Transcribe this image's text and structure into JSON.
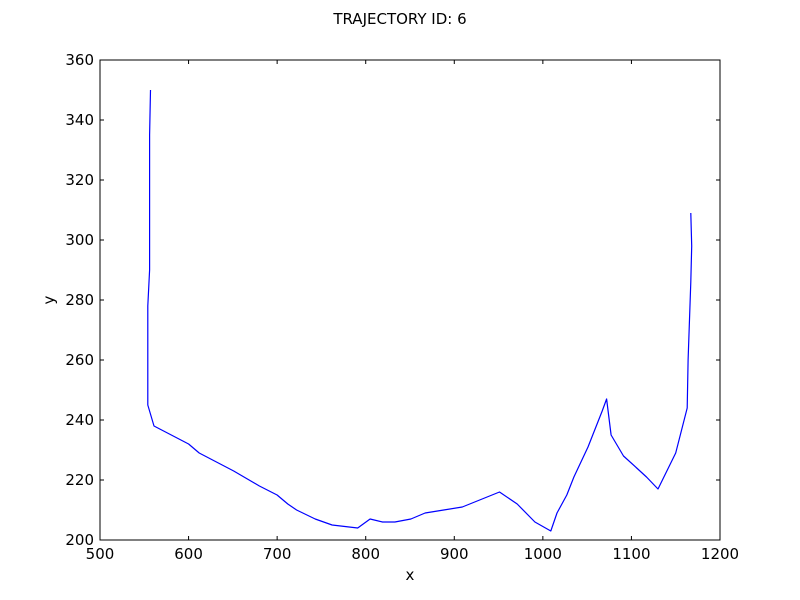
{
  "chart_data": {
    "type": "line",
    "title": "TRAJECTORY ID: 6",
    "xlabel": "x",
    "ylabel": "y",
    "xlim": [
      500,
      1200
    ],
    "ylim": [
      200,
      360
    ],
    "xticks": [
      500,
      600,
      700,
      800,
      900,
      1000,
      1100,
      1200
    ],
    "yticks": [
      200,
      220,
      240,
      260,
      280,
      300,
      320,
      340,
      360
    ],
    "grid": false,
    "line_color": "#0000ff",
    "series": [
      {
        "x": [
          557,
          556,
          556,
          554,
          554,
          561,
          600,
          612,
          651,
          680,
          700,
          712,
          722,
          743,
          762,
          791,
          805,
          819,
          833,
          851,
          867,
          888,
          909,
          951,
          971,
          991,
          1009,
          1016,
          1027,
          1035,
          1051,
          1067,
          1072,
          1077,
          1091,
          1106,
          1117,
          1130,
          1150,
          1163,
          1164,
          1167,
          1168,
          1167
        ],
        "y": [
          350,
          335,
          290,
          278,
          245,
          238,
          232,
          229,
          223,
          218,
          215,
          212,
          210,
          207,
          205,
          204,
          207,
          206,
          206,
          207,
          209,
          210,
          211,
          216,
          212,
          206,
          203,
          209,
          215,
          221,
          231,
          243,
          247,
          235,
          228,
          224,
          221,
          217,
          229,
          244,
          260,
          286,
          298,
          309
        ]
      }
    ]
  }
}
